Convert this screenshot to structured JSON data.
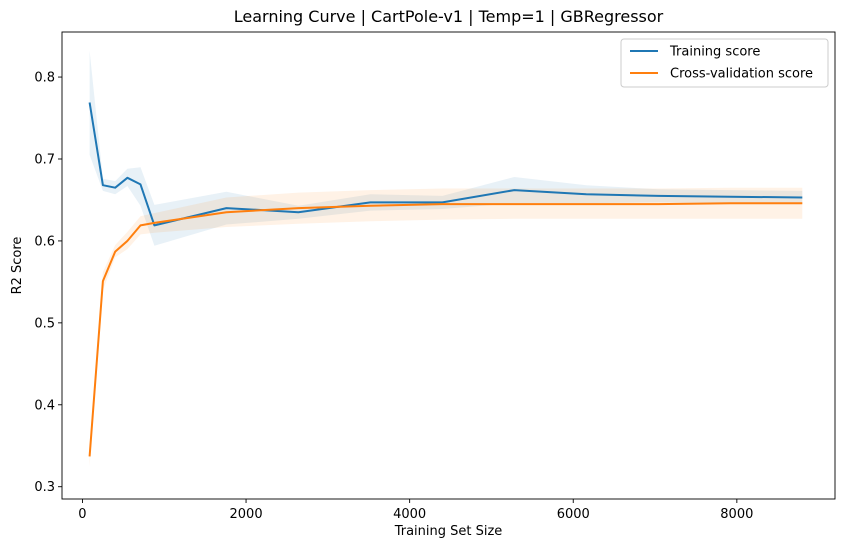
{
  "chart_data": {
    "type": "line",
    "title": "Learning Curve | CartPole-v1 | Temp=1 | GBRegressor",
    "xlabel": "Training Set Size",
    "ylabel": "R2 Score",
    "xlim": [
      -250,
      9200
    ],
    "ylim": [
      0.285,
      0.855
    ],
    "xticks": [
      0,
      2000,
      4000,
      6000,
      8000
    ],
    "yticks": [
      0.3,
      0.4,
      0.5,
      0.6,
      0.7,
      0.8
    ],
    "grid": false,
    "legend_position": "top-right",
    "x": [
      88,
      250,
      400,
      550,
      710,
      880,
      1760,
      2640,
      3520,
      4400,
      5280,
      6160,
      7040,
      7920,
      8800
    ],
    "series": [
      {
        "name": "Training score",
        "color": "#1f77b4",
        "values": [
          0.769,
          0.668,
          0.665,
          0.677,
          0.669,
          0.619,
          0.64,
          0.635,
          0.647,
          0.647,
          0.662,
          0.657,
          0.655,
          0.654,
          0.653
        ],
        "lower": [
          0.705,
          0.661,
          0.657,
          0.667,
          0.643,
          0.594,
          0.62,
          0.627,
          0.637,
          0.639,
          0.646,
          0.646,
          0.647,
          0.646,
          0.645
        ],
        "upper": [
          0.832,
          0.676,
          0.673,
          0.688,
          0.69,
          0.644,
          0.66,
          0.643,
          0.657,
          0.655,
          0.678,
          0.668,
          0.663,
          0.662,
          0.661
        ]
      },
      {
        "name": "Cross-validation score",
        "color": "#ff7f0e",
        "values": [
          0.337,
          0.551,
          0.587,
          0.6,
          0.619,
          0.622,
          0.635,
          0.64,
          0.643,
          0.645,
          0.645,
          0.645,
          0.645,
          0.646,
          0.646
        ],
        "lower": [
          0.325,
          0.54,
          0.58,
          0.59,
          0.608,
          0.61,
          0.617,
          0.621,
          0.624,
          0.626,
          0.627,
          0.627,
          0.627,
          0.627,
          0.627
        ],
        "upper": [
          0.35,
          0.562,
          0.595,
          0.611,
          0.63,
          0.634,
          0.653,
          0.659,
          0.662,
          0.664,
          0.664,
          0.664,
          0.664,
          0.665,
          0.665
        ]
      }
    ]
  }
}
